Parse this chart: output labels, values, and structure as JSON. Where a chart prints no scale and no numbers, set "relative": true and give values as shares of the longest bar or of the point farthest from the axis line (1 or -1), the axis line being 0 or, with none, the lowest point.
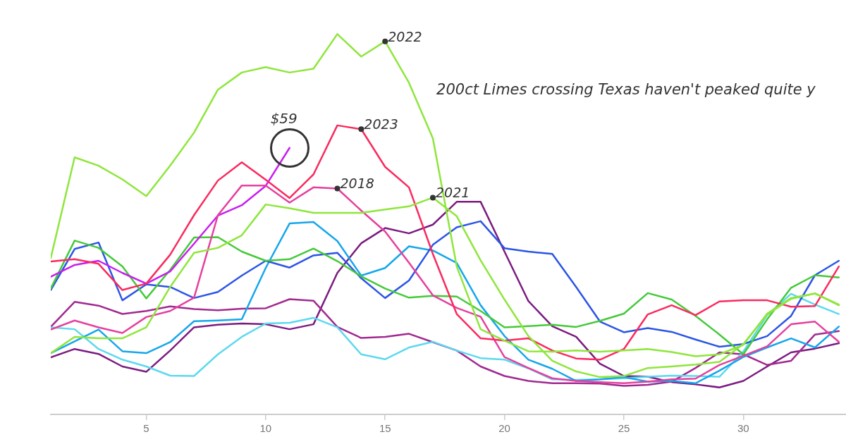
{
  "chart_data": {
    "type": "line",
    "relative": true,
    "x": [
      1,
      2,
      3,
      4,
      5,
      6,
      7,
      8,
      9,
      10,
      11,
      12,
      13,
      14,
      15,
      16,
      17,
      18,
      19,
      20,
      21,
      22,
      23,
      24,
      25,
      26,
      27,
      28,
      29,
      30,
      31,
      32,
      33,
      34
    ],
    "xlim": [
      1,
      34.3
    ],
    "xticks": [
      5,
      10,
      15,
      20,
      25,
      30
    ],
    "marker": "none",
    "line_style": "solid",
    "series": [
      {
        "color": "#8ee63c",
        "values": [
          0.411,
          0.676,
          0.654,
          0.618,
          0.574,
          0.654,
          0.741,
          0.854,
          0.899,
          0.913,
          0.899,
          0.909,
          1,
          0.941,
          0.981,
          0.872,
          0.726,
          0.389,
          0.224,
          0.194,
          0.166,
          0.165,
          0.168,
          0.165,
          0.168,
          0.172,
          0.164,
          0.153,
          0.158,
          0.183,
          0.265,
          0.306,
          0.318,
          0.289
        ]
      },
      {
        "color": "#8ee63c",
        "values": [
          0.161,
          0.204,
          0.2,
          0.2,
          0.229,
          0.335,
          0.425,
          0.438,
          0.471,
          0.552,
          0.542,
          0.53,
          0.53,
          0.53,
          0.539,
          0.547,
          0.57,
          0.521,
          0.405,
          0.302,
          0.206,
          0.141,
          0.113,
          0.098,
          0.101,
          0.122,
          0.126,
          0.131,
          0.138,
          0.185,
          0.263,
          0.304,
          0.318,
          0.287
        ]
      },
      {
        "color": "#fa2a5e",
        "values": [
          0.402,
          0.408,
          0.396,
          0.327,
          0.344,
          0.42,
          0.524,
          0.615,
          0.663,
          0.617,
          0.569,
          0.631,
          0.76,
          0.75,
          0.651,
          0.597,
          0.422,
          0.264,
          0.2,
          0.194,
          0.2,
          0.168,
          0.147,
          0.144,
          0.172,
          0.263,
          0.287,
          0.261,
          0.297,
          0.3,
          0.3,
          0.283,
          0.285,
          0.389
        ]
      },
      {
        "color": "#e5409d",
        "values": [
          0.223,
          0.247,
          0.229,
          0.214,
          0.256,
          0.272,
          0.307,
          0.524,
          0.602,
          0.602,
          0.557,
          0.597,
          0.594,
          0.536,
          0.481,
          0.399,
          0.313,
          0.28,
          0.257,
          0.151,
          0.122,
          0.095,
          0.088,
          0.085,
          0.082,
          0.086,
          0.092,
          0.094,
          0.13,
          0.154,
          0.179,
          0.237,
          0.244,
          0.191
        ]
      },
      {
        "color": "#c81ef0",
        "values": [
          0.362,
          0.393,
          0.404,
          0.372,
          0.344,
          0.376,
          0.449,
          0.523,
          0.55,
          0.601,
          0.701,
          null,
          null,
          null,
          null,
          null,
          null,
          null,
          null,
          null,
          null,
          null,
          null,
          null,
          null,
          null,
          null,
          null,
          null,
          null,
          null,
          null,
          null,
          null
        ]
      },
      {
        "color": "#45c93a",
        "values": [
          0.331,
          0.457,
          0.438,
          0.389,
          0.305,
          0.38,
          0.465,
          0.466,
          0.428,
          0.404,
          0.408,
          0.436,
          0.403,
          0.363,
          0.331,
          0.307,
          0.312,
          0.31,
          0.272,
          0.229,
          0.232,
          0.236,
          0.23,
          0.246,
          0.265,
          0.319,
          0.302,
          0.259,
          0.21,
          0.158,
          0.25,
          0.333,
          0.366,
          0.36
        ]
      },
      {
        "color": "#2b55e6",
        "values": [
          0.327,
          0.435,
          0.452,
          0.3,
          0.342,
          0.335,
          0.306,
          0.322,
          0.365,
          0.404,
          0.386,
          0.418,
          0.425,
          0.358,
          0.306,
          0.352,
          0.446,
          0.492,
          0.508,
          0.437,
          0.428,
          0.422,
          0.335,
          0.244,
          0.216,
          0.227,
          0.217,
          0.197,
          0.178,
          0.185,
          0.206,
          0.259,
          0.366,
          0.404
        ]
      },
      {
        "color": "#15a6ec",
        "values": [
          0.161,
          0.192,
          0.223,
          0.166,
          0.161,
          0.19,
          0.245,
          0.247,
          0.25,
          0.385,
          0.502,
          0.506,
          0.456,
          0.365,
          0.385,
          0.442,
          0.431,
          0.398,
          0.287,
          0.206,
          0.144,
          0.12,
          0.088,
          0.092,
          0.098,
          0.086,
          0.088,
          0.082,
          0.115,
          0.151,
          0.176,
          0.2,
          0.176,
          0.231
        ]
      },
      {
        "color": "#5cd9ee",
        "values": [
          0.229,
          0.224,
          0.172,
          0.144,
          0.126,
          0.102,
          0.101,
          0.158,
          0.204,
          0.239,
          0.241,
          0.254,
          0.229,
          0.158,
          0.145,
          0.176,
          0.191,
          0.168,
          0.148,
          0.144,
          0.121,
          0.092,
          0.091,
          0.092,
          0.095,
          0.099,
          0.102,
          0.101,
          0.099,
          0.165,
          0.261,
          0.317,
          0.289,
          0.264
        ]
      },
      {
        "color": "#a12a90",
        "values": [
          0.23,
          0.296,
          0.286,
          0.264,
          0.272,
          0.284,
          0.277,
          0.274,
          0.278,
          0.279,
          0.303,
          0.299,
          0.23,
          0.201,
          0.204,
          0.212,
          0.19,
          0.168,
          0.126,
          0.101,
          0.088,
          0.082,
          0.082,
          0.081,
          0.075,
          0.078,
          0.086,
          0.122,
          0.163,
          0.158,
          0.13,
          0.141,
          0.21,
          0.219
        ]
      },
      {
        "color": "#7b1c80",
        "values": [
          0.15,
          0.172,
          0.159,
          0.126,
          0.112,
          0.168,
          0.229,
          0.236,
          0.239,
          0.237,
          0.224,
          0.237,
          0.372,
          0.45,
          0.49,
          0.476,
          0.499,
          0.559,
          0.559,
          0.428,
          0.298,
          0.232,
          0.204,
          0.133,
          0.101,
          0.099,
          0.085,
          0.079,
          0.071,
          0.088,
          0.126,
          0.163,
          0.173,
          0.187
        ]
      }
    ],
    "annotations": [
      {
        "text": "2022",
        "x": 15,
        "y": 0.981
      },
      {
        "text": "2023",
        "x": 14,
        "y": 0.75
      },
      {
        "text": "2018",
        "x": 13,
        "y": 0.594
      },
      {
        "text": "2021",
        "x": 17,
        "y": 0.57
      },
      {
        "text": "$59",
        "x": 11,
        "y": 0.701
      },
      "200ct Limes crossing Texas haven't peaked quite y"
    ]
  }
}
